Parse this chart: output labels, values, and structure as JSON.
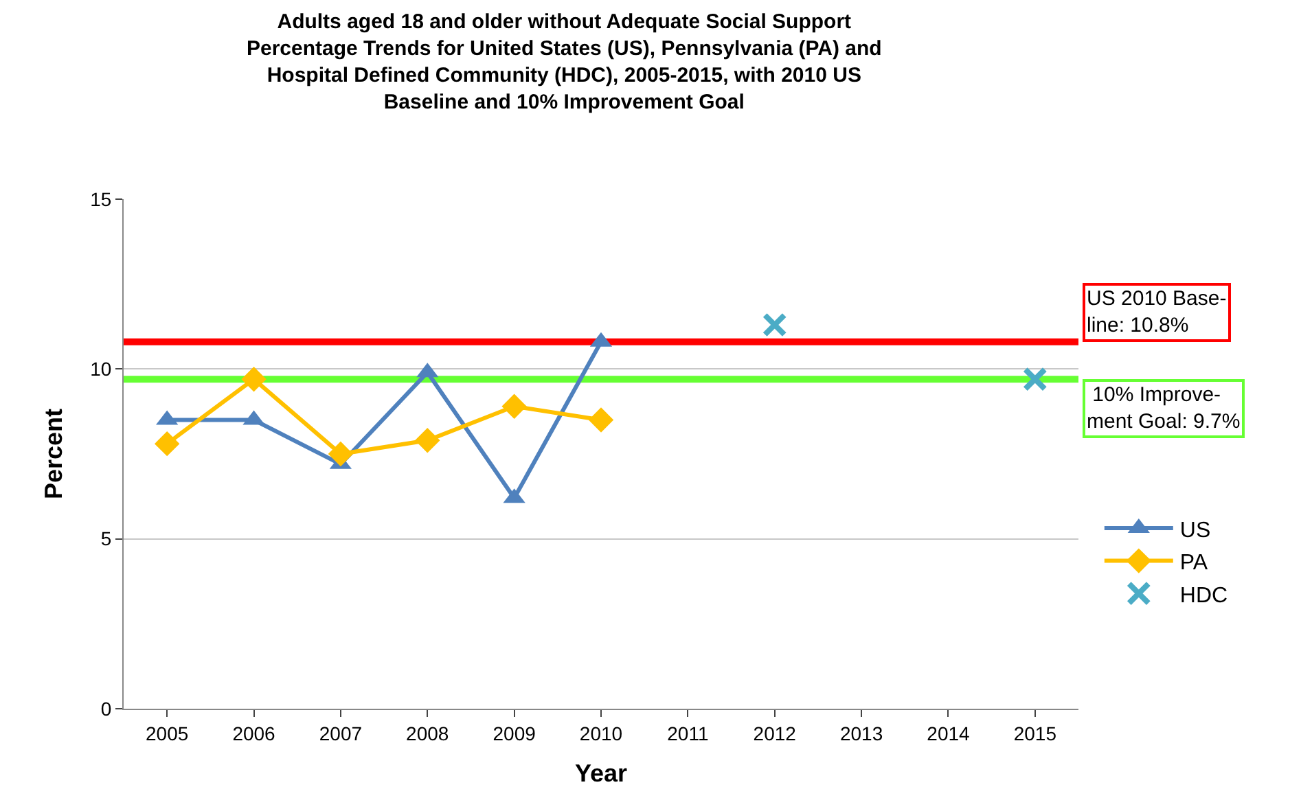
{
  "chart_data": {
    "type": "line",
    "title": "Adults aged 18 and older without Adequate Social Support\nPercentage Trends for United States (US), Pennsylvania (PA) and\nHospital Defined Community (HDC), 2005-2015, with 2010 US\nBaseline and 10% Improvement Goal",
    "xlabel": "Year",
    "ylabel": "Percent",
    "categories": [
      "2005",
      "2006",
      "2007",
      "2008",
      "2009",
      "2010",
      "2011",
      "2012",
      "2013",
      "2014",
      "2015"
    ],
    "series": [
      {
        "name": "US",
        "color": "#4f81bd",
        "marker": "triangle",
        "values": [
          8.5,
          8.5,
          7.2,
          9.9,
          6.2,
          10.8,
          null,
          null,
          null,
          null,
          null
        ]
      },
      {
        "name": "PA",
        "color": "#ffc000",
        "marker": "diamond",
        "values": [
          7.8,
          9.7,
          7.5,
          7.9,
          8.9,
          8.5,
          null,
          null,
          null,
          null,
          null
        ]
      },
      {
        "name": "HDC",
        "color": "#4bacc6",
        "type": "scatter",
        "marker": "cross",
        "values": [
          null,
          null,
          null,
          null,
          null,
          null,
          null,
          11.3,
          null,
          null,
          9.7
        ]
      }
    ],
    "ylim": [
      0,
      15
    ],
    "yticks": [
      0,
      5,
      10,
      15
    ],
    "grid": "y",
    "legend": "right",
    "ref_lines": [
      {
        "axis": "y",
        "value": 10.8,
        "label": "US 2010 Base-\nline: 10.8%",
        "color": "#ff0000"
      },
      {
        "axis": "y",
        "value": 9.7,
        "label": " 10% Improve-\nment Goal: 9.7%",
        "color": "#66ff33"
      }
    ]
  }
}
